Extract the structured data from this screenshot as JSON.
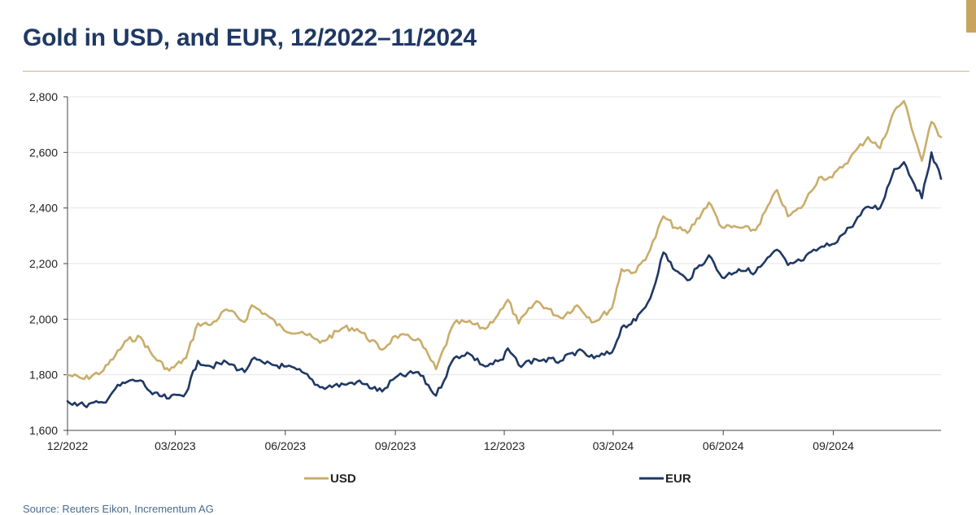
{
  "title": "Gold in USD, and EUR, 12/2022–11/2024",
  "source": "Source: Reuters Eikon, Incrementum AG",
  "colors": {
    "usd": "#c9ad6a",
    "eur": "#1f3864",
    "title": "#1f3864",
    "accent": "#c9a45c"
  },
  "chart_data": {
    "type": "line",
    "title": "Gold in USD, and EUR, 12/2022–11/2024",
    "xlabel": "",
    "ylabel": "",
    "ylim": [
      1600,
      2800
    ],
    "yticks": [
      1600,
      1800,
      2000,
      2200,
      2400,
      2600,
      2800
    ],
    "ytick_labels": [
      "1,600",
      "1,800",
      "2,000",
      "2,200",
      "2,400",
      "2,600",
      "2,800"
    ],
    "xlim": [
      "2022-12-01",
      "2024-11-30"
    ],
    "xticks": [
      "2022-12-01",
      "2023-03-01",
      "2023-06-01",
      "2023-09-01",
      "2023-12-01",
      "2024-03-01",
      "2024-06-01",
      "2024-09-01"
    ],
    "xtick_labels": [
      "12/2022",
      "03/2023",
      "06/2023",
      "09/2023",
      "12/2023",
      "03/2024",
      "06/2024",
      "09/2024"
    ],
    "grid": true,
    "legend": "bottom",
    "series": [
      {
        "name": "USD",
        "color": "#c9ad6a",
        "points": [
          [
            "2022-12-01",
            1800
          ],
          [
            "2022-12-15",
            1785
          ],
          [
            "2022-12-31",
            1815
          ],
          [
            "2023-01-10",
            1870
          ],
          [
            "2023-01-20",
            1925
          ],
          [
            "2023-01-31",
            1935
          ],
          [
            "2023-02-10",
            1870
          ],
          [
            "2023-02-24",
            1815
          ],
          [
            "2023-03-10",
            1860
          ],
          [
            "2023-03-20",
            1985
          ],
          [
            "2023-03-31",
            1980
          ],
          [
            "2023-04-13",
            2035
          ],
          [
            "2023-04-28",
            1990
          ],
          [
            "2023-05-04",
            2050
          ],
          [
            "2023-05-15",
            2020
          ],
          [
            "2023-05-31",
            1960
          ],
          [
            "2023-06-15",
            1955
          ],
          [
            "2023-06-30",
            1915
          ],
          [
            "2023-07-20",
            1970
          ],
          [
            "2023-07-31",
            1965
          ],
          [
            "2023-08-21",
            1890
          ],
          [
            "2023-09-01",
            1940
          ],
          [
            "2023-09-20",
            1930
          ],
          [
            "2023-10-05",
            1820
          ],
          [
            "2023-10-20",
            1985
          ],
          [
            "2023-10-31",
            1990
          ],
          [
            "2023-11-15",
            1965
          ],
          [
            "2023-11-30",
            2040
          ],
          [
            "2023-12-04",
            2070
          ],
          [
            "2023-12-13",
            1985
          ],
          [
            "2023-12-28",
            2065
          ],
          [
            "2024-01-17",
            2005
          ],
          [
            "2024-01-31",
            2050
          ],
          [
            "2024-02-14",
            1990
          ],
          [
            "2024-02-29",
            2040
          ],
          [
            "2024-03-08",
            2180
          ],
          [
            "2024-03-20",
            2170
          ],
          [
            "2024-04-01",
            2250
          ],
          [
            "2024-04-12",
            2370
          ],
          [
            "2024-04-22",
            2330
          ],
          [
            "2024-05-02",
            2310
          ],
          [
            "2024-05-20",
            2420
          ],
          [
            "2024-05-31",
            2330
          ],
          [
            "2024-06-14",
            2330
          ],
          [
            "2024-06-28",
            2320
          ],
          [
            "2024-07-16",
            2465
          ],
          [
            "2024-07-25",
            2370
          ],
          [
            "2024-08-05",
            2400
          ],
          [
            "2024-08-20",
            2510
          ],
          [
            "2024-08-31",
            2510
          ],
          [
            "2024-09-15",
            2580
          ],
          [
            "2024-09-30",
            2655
          ],
          [
            "2024-10-10",
            2615
          ],
          [
            "2024-10-22",
            2750
          ],
          [
            "2024-10-30",
            2785
          ],
          [
            "2024-11-14",
            2570
          ],
          [
            "2024-11-22",
            2710
          ],
          [
            "2024-11-30",
            2655
          ]
        ]
      },
      {
        "name": "EUR",
        "color": "#1f3864",
        "points": [
          [
            "2022-12-01",
            1705
          ],
          [
            "2022-12-15",
            1690
          ],
          [
            "2022-12-31",
            1700
          ],
          [
            "2023-01-10",
            1750
          ],
          [
            "2023-01-20",
            1775
          ],
          [
            "2023-01-31",
            1780
          ],
          [
            "2023-02-10",
            1730
          ],
          [
            "2023-02-24",
            1715
          ],
          [
            "2023-03-10",
            1735
          ],
          [
            "2023-03-20",
            1850
          ],
          [
            "2023-03-31",
            1830
          ],
          [
            "2023-04-13",
            1845
          ],
          [
            "2023-04-28",
            1810
          ],
          [
            "2023-05-04",
            1855
          ],
          [
            "2023-05-15",
            1840
          ],
          [
            "2023-05-31",
            1830
          ],
          [
            "2023-06-15",
            1810
          ],
          [
            "2023-06-30",
            1755
          ],
          [
            "2023-07-20",
            1765
          ],
          [
            "2023-07-31",
            1775
          ],
          [
            "2023-08-21",
            1740
          ],
          [
            "2023-09-01",
            1790
          ],
          [
            "2023-09-20",
            1810
          ],
          [
            "2023-10-05",
            1725
          ],
          [
            "2023-10-20",
            1860
          ],
          [
            "2023-10-31",
            1880
          ],
          [
            "2023-11-15",
            1830
          ],
          [
            "2023-11-30",
            1855
          ],
          [
            "2023-12-04",
            1895
          ],
          [
            "2023-12-13",
            1835
          ],
          [
            "2023-12-28",
            1855
          ],
          [
            "2024-01-17",
            1850
          ],
          [
            "2024-01-31",
            1885
          ],
          [
            "2024-02-14",
            1860
          ],
          [
            "2024-02-29",
            1880
          ],
          [
            "2024-03-08",
            1970
          ],
          [
            "2024-03-20",
            1995
          ],
          [
            "2024-04-01",
            2075
          ],
          [
            "2024-04-12",
            2240
          ],
          [
            "2024-04-22",
            2175
          ],
          [
            "2024-05-02",
            2140
          ],
          [
            "2024-05-20",
            2230
          ],
          [
            "2024-05-31",
            2150
          ],
          [
            "2024-06-14",
            2180
          ],
          [
            "2024-06-28",
            2170
          ],
          [
            "2024-07-16",
            2250
          ],
          [
            "2024-07-25",
            2195
          ],
          [
            "2024-08-05",
            2210
          ],
          [
            "2024-08-20",
            2255
          ],
          [
            "2024-08-31",
            2270
          ],
          [
            "2024-09-15",
            2330
          ],
          [
            "2024-09-30",
            2405
          ],
          [
            "2024-10-10",
            2400
          ],
          [
            "2024-10-22",
            2540
          ],
          [
            "2024-10-30",
            2565
          ],
          [
            "2024-11-14",
            2435
          ],
          [
            "2024-11-22",
            2600
          ],
          [
            "2024-11-30",
            2505
          ]
        ]
      }
    ]
  }
}
